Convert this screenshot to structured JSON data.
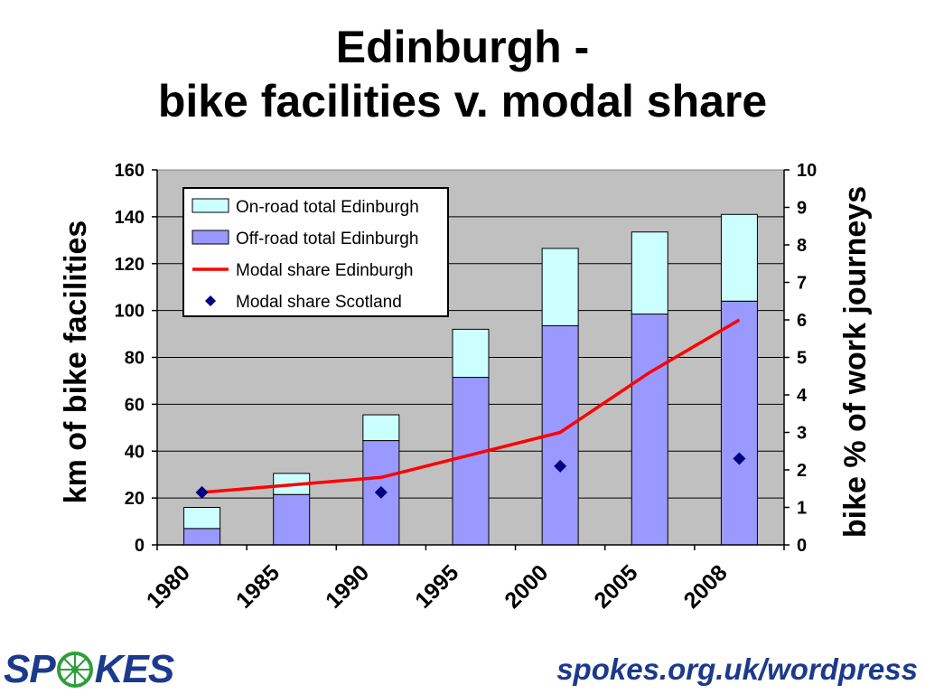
{
  "title": {
    "line1": "Edinburgh -",
    "line2": "bike facilities v. modal share"
  },
  "footer": {
    "url": "spokes.org.uk/wordpress",
    "logo_left": "SP",
    "logo_right": "KES"
  },
  "chart_data": {
    "type": "bar",
    "stacked": true,
    "categories": [
      "1980",
      "1985",
      "1990",
      "1995",
      "2000",
      "2005",
      "2008"
    ],
    "series": [
      {
        "name": "Off-road total Edinburgh",
        "type": "bar",
        "axis": "left",
        "color": "#9999ff",
        "values": [
          7,
          21.5,
          44.5,
          71.5,
          93.5,
          98.5,
          104
        ]
      },
      {
        "name": "On-road total Edinburgh",
        "type": "bar",
        "axis": "left",
        "color": "#ccffff",
        "values": [
          9,
          9,
          11,
          20.5,
          33,
          35,
          37
        ]
      },
      {
        "name": "Modal share Edinburgh",
        "type": "line",
        "axis": "right",
        "color": "#ff0000",
        "values": [
          1.4,
          1.6,
          1.8,
          2.4,
          3.0,
          4.6,
          6.0
        ]
      },
      {
        "name": "Modal share Scotland",
        "type": "scatter",
        "axis": "right",
        "color": "#000080",
        "values": [
          1.4,
          null,
          1.4,
          null,
          2.1,
          null,
          2.3
        ]
      }
    ],
    "ylabel": "km of bike facilities",
    "y2label": "bike % of work journeys",
    "ylim": [
      0,
      160
    ],
    "y2lim": [
      0,
      10
    ],
    "yticks": [
      "0",
      "20",
      "40",
      "60",
      "80",
      "100",
      "120",
      "140",
      "160"
    ],
    "y2ticks": [
      "0",
      "1",
      "2",
      "3",
      "4",
      "5",
      "6",
      "7",
      "8",
      "9",
      "10"
    ],
    "grid": true,
    "legend_position": "top-left",
    "legend": [
      {
        "label": "On-road total Edinburgh",
        "kind": "box",
        "color": "#ccffff"
      },
      {
        "label": "Off-road total Edinburgh",
        "kind": "box",
        "color": "#9999ff"
      },
      {
        "label": "Modal share Edinburgh",
        "kind": "line",
        "color": "#ff0000"
      },
      {
        "label": "Modal share Scotland",
        "kind": "diamond",
        "color": "#000080"
      }
    ],
    "plot_background": "#c0c0c0"
  }
}
